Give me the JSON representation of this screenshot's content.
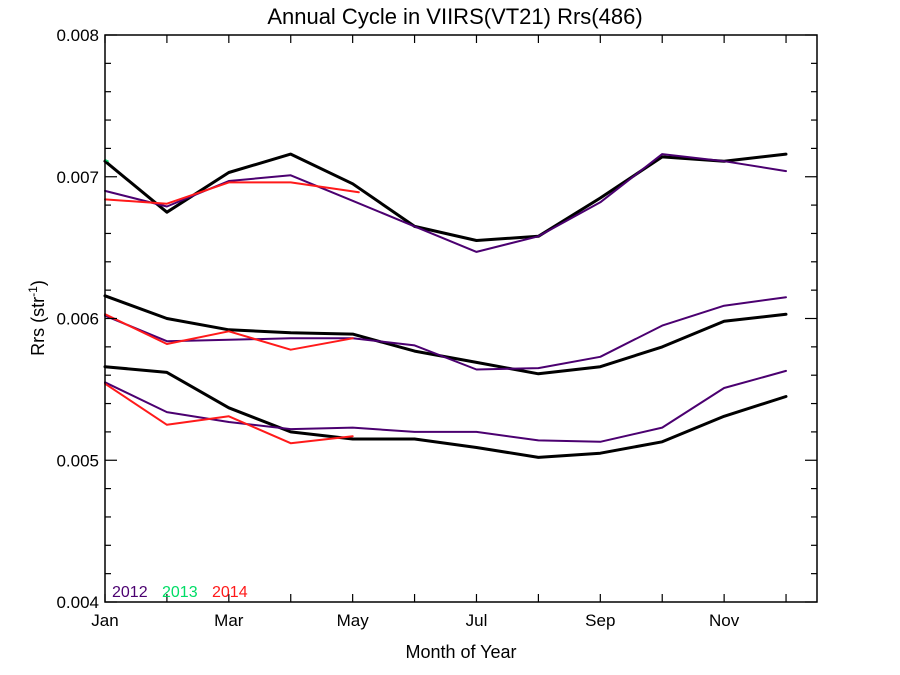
{
  "chart_data": {
    "type": "line",
    "title": "Annual Cycle in VIIRS(VT21) Rrs(486)",
    "xlabel": "Month of Year",
    "ylabel_main": "Rrs (str",
    "ylabel_sup": "-1",
    "ylabel_end": ")",
    "xlim": [
      1,
      12.5
    ],
    "ylim": [
      0.004,
      0.008
    ],
    "x_ticks": [
      {
        "value": 1,
        "label": "Jan"
      },
      {
        "value": 3,
        "label": "Mar"
      },
      {
        "value": 5,
        "label": "May"
      },
      {
        "value": 7,
        "label": "Jul"
      },
      {
        "value": 9,
        "label": "Sep"
      },
      {
        "value": 11,
        "label": "Nov"
      }
    ],
    "y_ticks": [
      {
        "value": 0.004,
        "label": "0.004"
      },
      {
        "value": 0.005,
        "label": "0.005"
      },
      {
        "value": 0.006,
        "label": "0.006"
      },
      {
        "value": 0.007,
        "label": "0.007"
      },
      {
        "value": 0.008,
        "label": "0.008"
      }
    ],
    "legend": [
      {
        "name": "2012",
        "color": "#4b0070"
      },
      {
        "name": "2013",
        "color": "#00dd66"
      },
      {
        "name": "2014",
        "color": "#ff1a1a"
      }
    ],
    "legend_position": "bottom-left",
    "grid": false,
    "series": [
      {
        "group": "high",
        "kind": "climatology",
        "color": "#000000",
        "width": 3,
        "x": [
          1,
          2,
          3,
          4,
          5,
          6,
          7,
          8,
          9,
          10,
          11,
          12
        ],
        "y": [
          0.00711,
          0.00675,
          0.00703,
          0.00716,
          0.00695,
          0.00665,
          0.00655,
          0.00658,
          0.00685,
          0.00714,
          0.00711,
          0.00716
        ]
      },
      {
        "group": "high",
        "kind": "2012",
        "color": "#4b0070",
        "width": 2,
        "x": [
          1,
          2,
          3,
          4,
          5,
          6,
          7,
          8,
          9,
          10,
          11,
          12
        ],
        "y": [
          0.0069,
          0.00679,
          0.00697,
          0.00701,
          0.00683,
          0.00665,
          0.00647,
          0.00658,
          0.00682,
          0.00716,
          0.00711,
          0.00704
        ]
      },
      {
        "group": "high",
        "kind": "2014",
        "color": "#ff1a1a",
        "width": 2,
        "x": [
          1,
          2,
          3,
          4,
          5.1
        ],
        "y": [
          0.00684,
          0.00681,
          0.00696,
          0.00696,
          0.00689
        ]
      },
      {
        "group": "high",
        "kind": "2013",
        "color": "#00dd66",
        "width": 1.5,
        "x": [
          1,
          1.05
        ],
        "y": [
          0.00712,
          0.00711
        ]
      },
      {
        "group": "mid",
        "kind": "climatology",
        "color": "#000000",
        "width": 3,
        "x": [
          1,
          2,
          3,
          4,
          5,
          6,
          7,
          8,
          9,
          10,
          11,
          12
        ],
        "y": [
          0.00616,
          0.006,
          0.00592,
          0.0059,
          0.00589,
          0.00577,
          0.00569,
          0.00561,
          0.00566,
          0.0058,
          0.00598,
          0.00603
        ]
      },
      {
        "group": "mid",
        "kind": "2012",
        "color": "#4b0070",
        "width": 2,
        "x": [
          1,
          2,
          3,
          4,
          5,
          6,
          7,
          8,
          9,
          10,
          11,
          12
        ],
        "y": [
          0.00602,
          0.00584,
          0.00585,
          0.00586,
          0.00586,
          0.00581,
          0.00564,
          0.00565,
          0.00573,
          0.00595,
          0.00609,
          0.00615
        ]
      },
      {
        "group": "mid",
        "kind": "2014",
        "color": "#ff1a1a",
        "width": 2,
        "x": [
          1,
          2,
          3,
          4,
          5
        ],
        "y": [
          0.00603,
          0.00582,
          0.00591,
          0.00578,
          0.00586
        ]
      },
      {
        "group": "low",
        "kind": "climatology",
        "color": "#000000",
        "width": 3,
        "x": [
          1,
          2,
          3,
          4,
          5,
          6,
          7,
          8,
          9,
          10,
          11,
          12
        ],
        "y": [
          0.00566,
          0.00562,
          0.00537,
          0.0052,
          0.00515,
          0.00515,
          0.00509,
          0.00502,
          0.00505,
          0.00513,
          0.00531,
          0.00545
        ]
      },
      {
        "group": "low",
        "kind": "2012",
        "color": "#4b0070",
        "width": 2,
        "x": [
          1,
          2,
          3,
          4,
          5,
          6,
          7,
          8,
          9,
          10,
          11,
          12
        ],
        "y": [
          0.00555,
          0.00534,
          0.00527,
          0.00522,
          0.00523,
          0.0052,
          0.0052,
          0.00514,
          0.00513,
          0.00523,
          0.00551,
          0.00563
        ]
      },
      {
        "group": "low",
        "kind": "2014",
        "color": "#ff1a1a",
        "width": 2,
        "x": [
          1,
          2,
          3,
          4,
          5
        ],
        "y": [
          0.00554,
          0.00525,
          0.00531,
          0.00512,
          0.00517
        ]
      }
    ]
  }
}
